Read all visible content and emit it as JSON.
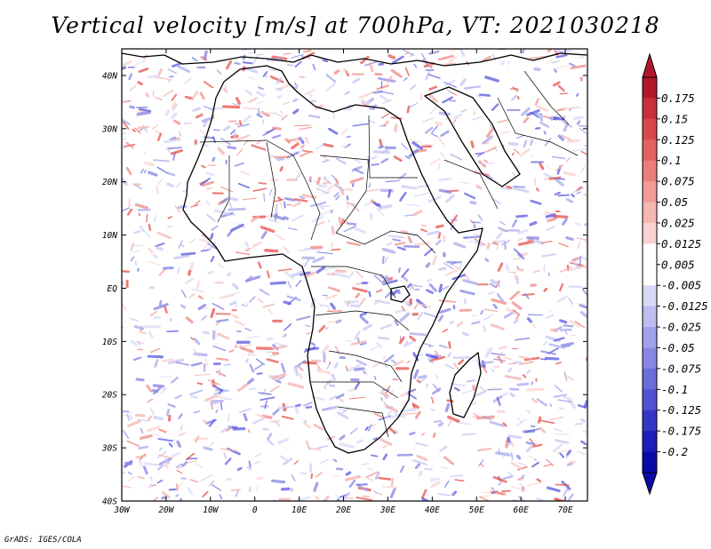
{
  "chart_data": {
    "type": "heatmap",
    "title": "Vertical velocity [m/s] at 700hPa, VT: 2021030218",
    "variable": "Vertical velocity",
    "units": "m/s",
    "level": "700hPa",
    "valid_time": "2021030218",
    "xlim": [
      -30,
      75
    ],
    "ylim": [
      -40,
      45
    ],
    "x_ticks": [
      -30,
      -20,
      -10,
      0,
      10,
      20,
      30,
      40,
      50,
      60,
      70
    ],
    "x_tick_labels": [
      "30W",
      "20W",
      "10W",
      "0",
      "10E",
      "20E",
      "30E",
      "40E",
      "50E",
      "60E",
      "70E"
    ],
    "y_ticks": [
      40,
      30,
      20,
      10,
      0,
      -10,
      -20,
      -30,
      -40
    ],
    "y_tick_labels": [
      "40N",
      "30N",
      "20N",
      "10N",
      "EQ",
      "10S",
      "20S",
      "30S",
      "40S"
    ],
    "colorbar": {
      "labels": [
        "0.175",
        "0.15",
        "0.125",
        "0.1",
        "0.075",
        "0.05",
        "0.025",
        "0.0125",
        "0.005",
        "-0.005",
        "-0.0125",
        "-0.025",
        "-0.05",
        "-0.075",
        "-0.1",
        "-0.125",
        "-0.175",
        "-0.2"
      ],
      "colors": [
        "#b2182b",
        "#c9303a",
        "#d8484b",
        "#e3615f",
        "#eb7d7a",
        "#f29a96",
        "#f6b6b2",
        "#f9d2cf",
        "#ffffff",
        "#ffffff",
        "#d8d8f6",
        "#bdbdf0",
        "#a2a2ea",
        "#8787e3",
        "#6c6cdb",
        "#5151d1",
        "#3636c6",
        "#1d1db8",
        "#0a0aa5"
      ],
      "top_arrow_color": "#b2182b",
      "bottom_arrow_color": "#0a0aa5"
    }
  },
  "footer": {
    "credit": "GrADS: IGES/COLA"
  },
  "colors": {
    "land_outline": "#000000",
    "background": "#ffffff",
    "noise_red": "#e8504a",
    "noise_blue": "#5a5ae0"
  }
}
